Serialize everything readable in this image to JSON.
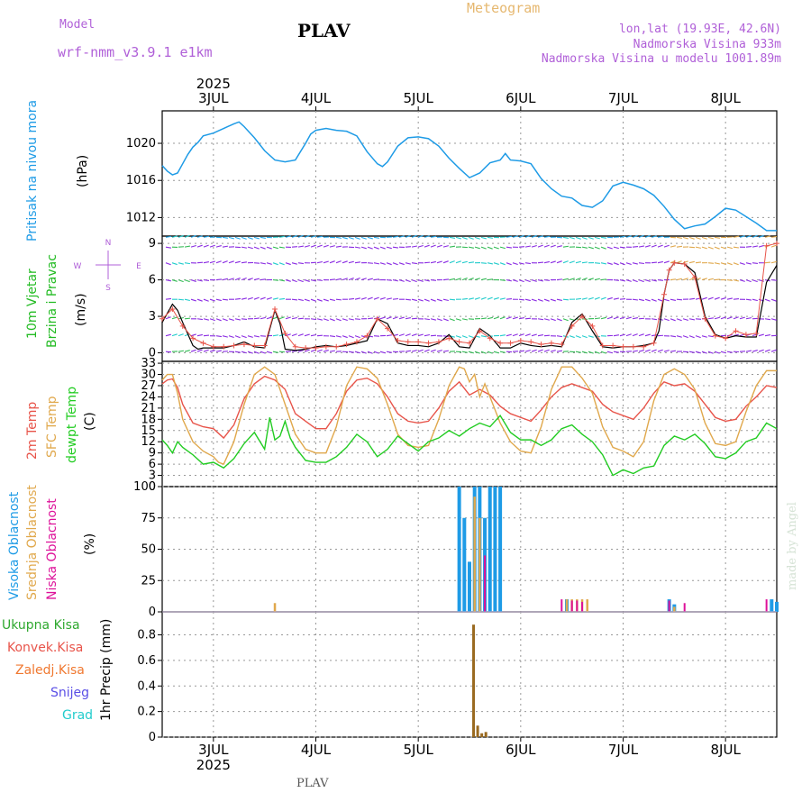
{
  "header": {
    "model_label": "Model",
    "model_name": "wrf-nmm_v3.9.1 e1km",
    "station": "PLAV",
    "meteogram": "Meteogram",
    "coords": "lon,lat (19.93E, 42.6N)",
    "altitude": "Nadmorska Visina 933m",
    "model_altitude": "Nadmorska Visina u modelu 1001.89m",
    "footer_station": "PLAV",
    "credit": "made by Angel"
  },
  "colors": {
    "pressure": "#1e9be6",
    "wind_label": "#22bb22",
    "temp2m": "#e8544a",
    "sfc": "#e0a84c",
    "dewpt": "#22cc22",
    "high_cloud": "#1e9be6",
    "mid_cloud": "#e0a84c",
    "low_cloud": "#dd1199",
    "precip_total": "#2ea82e",
    "convective": "#e8544a",
    "freezing": "#f07830",
    "snow": "#5a4fe6",
    "hail": "#22cccc",
    "precip_bar": "#9a6a20",
    "gust": "#000000",
    "wind_cross": "#e8544a",
    "header_purple": "#b060d8",
    "meteogram_title": "#e6b870"
  },
  "x_axis": {
    "year": "2025",
    "dates": [
      "3JUL",
      "4JUL",
      "5JUL",
      "6JUL",
      "7JUL",
      "8JUL"
    ],
    "range_days": [
      2.5,
      8.5
    ]
  },
  "chart_data": [
    {
      "type": "line",
      "panel": "pressure",
      "ylabel_main": "Pritisak na nivou mora",
      "ylabel_unit": "(hPa)",
      "ylim": [
        1010,
        1023.5
      ],
      "yticks": [
        1012,
        1016,
        1020
      ],
      "series": [
        {
          "x": [
            2.5,
            2.55,
            2.6,
            2.65,
            2.7,
            2.75,
            2.8,
            2.85,
            2.9,
            3.0,
            3.1,
            3.2,
            3.25,
            3.3,
            3.4,
            3.5,
            3.6,
            3.7,
            3.8,
            3.9,
            3.95,
            4.0,
            4.1,
            4.2,
            4.3,
            4.4,
            4.5,
            4.6,
            4.65,
            4.7,
            4.8,
            4.9,
            5.0,
            5.1,
            5.2,
            5.3,
            5.4,
            5.5,
            5.6,
            5.7,
            5.8,
            5.85,
            5.9,
            6.0,
            6.1,
            6.2,
            6.3,
            6.4,
            6.5,
            6.6,
            6.7,
            6.8,
            6.9,
            7.0,
            7.1,
            7.2,
            7.3,
            7.4,
            7.5,
            7.6,
            7.7,
            7.8,
            7.9,
            8.0,
            8.1,
            8.2,
            8.3,
            8.4,
            8.5
          ],
          "y": [
            1017.6,
            1017,
            1016.6,
            1016.8,
            1017.8,
            1018.8,
            1019.6,
            1020.1,
            1020.8,
            1021.1,
            1021.6,
            1022.1,
            1022.3,
            1021.8,
            1020.6,
            1019.2,
            1018.2,
            1018,
            1018.2,
            1020,
            1021,
            1021.4,
            1021.6,
            1021.4,
            1021.3,
            1020.8,
            1019.1,
            1017.8,
            1017.5,
            1018,
            1019.7,
            1020.6,
            1020.7,
            1020.5,
            1019.7,
            1018.4,
            1017.3,
            1016.3,
            1016.8,
            1017.9,
            1018.2,
            1018.9,
            1018.2,
            1018.1,
            1017.8,
            1016.2,
            1015.1,
            1014.3,
            1014.1,
            1013.3,
            1013.1,
            1013.8,
            1015.4,
            1015.8,
            1015.5,
            1015.1,
            1014.4,
            1013.2,
            1011.8,
            1010.8,
            1011.1,
            1011.3,
            1012.1,
            1013,
            1012.8,
            1012.1,
            1011.4,
            1010.6,
            1010.6
          ]
        }
      ]
    },
    {
      "type": "line",
      "panel": "wind",
      "ylabel_main": "10m Vjetar",
      "ylabel_sub": "Brzina i Pravac",
      "ylabel_unit": "(m/s)",
      "compass": {
        "n": "N",
        "s": "S",
        "e": "E",
        "w": "W"
      },
      "ylim": [
        -0.7,
        9.6
      ],
      "yticks": [
        0,
        3,
        6,
        9
      ],
      "barb_rows": [
        0.1,
        1.4,
        2.8,
        4.4,
        6.0,
        7.4,
        8.7,
        9.5
      ],
      "series": [
        {
          "key": "gust",
          "x": [
            2.5,
            2.6,
            2.65,
            2.7,
            2.8,
            2.85,
            2.9,
            3.0,
            3.1,
            3.2,
            3.3,
            3.4,
            3.5,
            3.6,
            3.65,
            3.7,
            3.8,
            3.9,
            4.0,
            4.1,
            4.2,
            4.3,
            4.4,
            4.5,
            4.6,
            4.7,
            4.8,
            4.9,
            5.0,
            5.1,
            5.2,
            5.3,
            5.4,
            5.5,
            5.6,
            5.7,
            5.8,
            5.9,
            6.0,
            6.1,
            6.2,
            6.3,
            6.4,
            6.5,
            6.6,
            6.7,
            6.8,
            6.9,
            7.0,
            7.1,
            7.2,
            7.3,
            7.35,
            7.4,
            7.45,
            7.5,
            7.6,
            7.7,
            7.8,
            7.9,
            8.0,
            8.1,
            8.2,
            8.3,
            8.4,
            8.5
          ],
          "y": [
            2.5,
            4.0,
            3.5,
            2.5,
            0.6,
            0.3,
            0.4,
            0.4,
            0.4,
            0.6,
            0.9,
            0.5,
            0.4,
            3.5,
            2.4,
            0.3,
            0.2,
            0.3,
            0.5,
            0.6,
            0.5,
            0.6,
            0.8,
            1.0,
            2.8,
            2.4,
            0.8,
            0.6,
            0.6,
            0.5,
            0.8,
            1.5,
            0.5,
            0.4,
            2.0,
            1.4,
            0.4,
            0.4,
            0.8,
            0.6,
            0.5,
            0.6,
            0.5,
            2.5,
            3.2,
            1.8,
            0.5,
            0.4,
            0.5,
            0.5,
            0.6,
            0.8,
            1.8,
            4.8,
            6.8,
            7.4,
            7.3,
            6.6,
            3.0,
            1.5,
            1.2,
            1.4,
            1.3,
            1.3,
            5.8,
            7.2
          ]
        },
        {
          "key": "speed",
          "x": [
            2.5,
            2.6,
            2.7,
            2.8,
            2.9,
            3.0,
            3.1,
            3.2,
            3.3,
            3.4,
            3.5,
            3.6,
            3.7,
            3.8,
            3.9,
            4.0,
            4.1,
            4.2,
            4.3,
            4.4,
            4.5,
            4.6,
            4.7,
            4.8,
            4.9,
            5.0,
            5.1,
            5.2,
            5.3,
            5.4,
            5.5,
            5.6,
            5.7,
            5.8,
            5.9,
            6.0,
            6.1,
            6.2,
            6.3,
            6.4,
            6.5,
            6.6,
            6.7,
            6.8,
            6.9,
            7.0,
            7.1,
            7.2,
            7.3,
            7.4,
            7.45,
            7.5,
            7.6,
            7.7,
            7.8,
            7.9,
            8.0,
            8.1,
            8.2,
            8.3,
            8.4,
            8.5
          ],
          "y": [
            2.8,
            3.6,
            2.2,
            1.2,
            0.8,
            0.5,
            0.5,
            0.6,
            0.7,
            0.6,
            0.6,
            3.6,
            1.6,
            0.5,
            0.4,
            0.4,
            0.5,
            0.5,
            0.7,
            0.9,
            1.4,
            2.8,
            2.0,
            1.0,
            0.9,
            0.9,
            0.8,
            0.9,
            1.2,
            0.9,
            0.8,
            1.8,
            1.2,
            0.8,
            0.8,
            1.0,
            0.9,
            0.7,
            0.8,
            0.7,
            2.2,
            3.0,
            2.2,
            0.6,
            0.6,
            0.5,
            0.5,
            0.5,
            0.8,
            4.8,
            6.8,
            7.4,
            7.3,
            6.2,
            2.8,
            1.4,
            1.2,
            1.8,
            1.5,
            1.6,
            8.8,
            9.0
          ]
        }
      ]
    },
    {
      "type": "line",
      "panel": "temperature",
      "ylabel_lines": [
        "2m Temp",
        "SFC Temp",
        "dewpt Temp"
      ],
      "ylabel_unit": "(C)",
      "ylim": [
        0,
        33.5
      ],
      "yticks": [
        0,
        3,
        6,
        9,
        12,
        15,
        18,
        21,
        24,
        27,
        30,
        33
      ],
      "series": [
        {
          "key": "temp2m",
          "x": [
            2.5,
            2.55,
            2.6,
            2.65,
            2.7,
            2.8,
            2.9,
            3.0,
            3.1,
            3.2,
            3.3,
            3.4,
            3.5,
            3.6,
            3.7,
            3.8,
            3.9,
            4.0,
            4.1,
            4.2,
            4.3,
            4.4,
            4.5,
            4.6,
            4.7,
            4.8,
            4.9,
            5.0,
            5.1,
            5.2,
            5.3,
            5.4,
            5.5,
            5.6,
            5.7,
            5.8,
            5.9,
            6.0,
            6.1,
            6.2,
            6.3,
            6.4,
            6.5,
            6.6,
            6.7,
            6.8,
            6.9,
            7.0,
            7.1,
            7.2,
            7.3,
            7.4,
            7.5,
            7.6,
            7.7,
            7.8,
            7.9,
            8.0,
            8.1,
            8.2,
            8.3,
            8.4,
            8.5
          ],
          "y": [
            27.5,
            28.5,
            28.8,
            26.5,
            22.0,
            17.0,
            16.0,
            15.5,
            13.0,
            16.5,
            23.5,
            27.5,
            29.5,
            28.5,
            26.0,
            19.5,
            17.5,
            15.5,
            15.5,
            19.5,
            25.5,
            28.5,
            29.0,
            27.5,
            24.0,
            19.5,
            17.5,
            17.0,
            17.5,
            21.0,
            25.5,
            28.0,
            24.5,
            26.0,
            24.5,
            21.5,
            19.5,
            18.5,
            17.5,
            20.5,
            24.0,
            26.5,
            27.5,
            26.5,
            25.5,
            22.0,
            20.0,
            19.0,
            18.0,
            21.0,
            25.0,
            28.0,
            27.0,
            27.5,
            25.5,
            22.0,
            18.5,
            17.5,
            18.0,
            21.5,
            24.0,
            27.0,
            26.5
          ]
        },
        {
          "key": "sfc",
          "x": [
            2.5,
            2.55,
            2.6,
            2.65,
            2.7,
            2.8,
            2.9,
            3.0,
            3.05,
            3.1,
            3.2,
            3.3,
            3.4,
            3.5,
            3.6,
            3.7,
            3.8,
            3.9,
            4.0,
            4.1,
            4.2,
            4.3,
            4.4,
            4.5,
            4.6,
            4.7,
            4.8,
            4.9,
            5.0,
            5.1,
            5.2,
            5.3,
            5.4,
            5.45,
            5.5,
            5.55,
            5.6,
            5.65,
            5.7,
            5.8,
            5.9,
            6.0,
            6.1,
            6.2,
            6.3,
            6.4,
            6.5,
            6.6,
            6.7,
            6.8,
            6.9,
            7.0,
            7.1,
            7.2,
            7.3,
            7.4,
            7.5,
            7.6,
            7.7,
            7.8,
            7.9,
            8.0,
            8.1,
            8.2,
            8.3,
            8.4,
            8.5
          ],
          "y": [
            28.5,
            30.0,
            30.0,
            25.0,
            18.0,
            12.0,
            9.5,
            8.0,
            6.5,
            6.0,
            12.0,
            22.0,
            30.0,
            32.0,
            30.0,
            22.0,
            14.0,
            10.0,
            9.0,
            9.0,
            16.0,
            27.0,
            32.0,
            31.5,
            29.0,
            22.0,
            14.0,
            11.0,
            10.5,
            11.0,
            18.0,
            27.0,
            32.0,
            31.5,
            28.0,
            30.0,
            24.0,
            27.5,
            24.0,
            17.0,
            12.0,
            9.5,
            9.0,
            16.0,
            26.0,
            32.0,
            32.0,
            29.0,
            25.0,
            16.0,
            10.5,
            9.5,
            8.0,
            12.0,
            23.0,
            30.0,
            31.5,
            30.0,
            26.0,
            17.0,
            11.5,
            11.0,
            12.0,
            20.0,
            27.0,
            31.0,
            31.0
          ]
        },
        {
          "key": "dewpt",
          "x": [
            2.5,
            2.55,
            2.6,
            2.65,
            2.7,
            2.8,
            2.9,
            3.0,
            3.1,
            3.2,
            3.3,
            3.4,
            3.5,
            3.55,
            3.6,
            3.65,
            3.7,
            3.75,
            3.8,
            3.9,
            4.0,
            4.1,
            4.2,
            4.3,
            4.4,
            4.5,
            4.6,
            4.7,
            4.8,
            4.9,
            5.0,
            5.1,
            5.2,
            5.3,
            5.4,
            5.5,
            5.6,
            5.7,
            5.8,
            5.9,
            6.0,
            6.1,
            6.2,
            6.3,
            6.4,
            6.5,
            6.6,
            6.7,
            6.8,
            6.9,
            7.0,
            7.1,
            7.2,
            7.3,
            7.4,
            7.5,
            7.6,
            7.7,
            7.8,
            7.9,
            8.0,
            8.1,
            8.2,
            8.3,
            8.4,
            8.5
          ],
          "y": [
            12.5,
            11.0,
            9.0,
            12.0,
            10.5,
            8.5,
            6.0,
            6.5,
            5.0,
            7.5,
            11.5,
            14.5,
            10.0,
            18.5,
            12.5,
            13.5,
            17.5,
            13.0,
            10.5,
            7.0,
            6.5,
            6.5,
            8.0,
            10.5,
            14.0,
            12.0,
            8.0,
            10.0,
            13.5,
            11.5,
            9.5,
            12.0,
            13.0,
            15.0,
            13.5,
            15.5,
            17.0,
            16.0,
            19.0,
            14.5,
            12.5,
            12.5,
            11.0,
            12.5,
            15.5,
            16.5,
            14.0,
            12.0,
            8.5,
            3.0,
            4.5,
            3.5,
            5.0,
            5.5,
            11.0,
            13.5,
            12.5,
            14.0,
            11.5,
            8.0,
            7.5,
            9.0,
            12.0,
            13.0,
            17.0,
            15.5
          ]
        }
      ]
    },
    {
      "type": "bar",
      "panel": "cloud",
      "ylabel_lines": [
        "Visoka Oblacnost",
        "Srednja Oblacnost",
        "Niska Oblacnost"
      ],
      "ylabel_unit": "(%)",
      "ylim": [
        0,
        100
      ],
      "yticks": [
        0,
        25,
        50,
        75,
        100
      ],
      "high_x": [
        5.4,
        5.45,
        5.5,
        5.55,
        5.6,
        5.65,
        5.7,
        5.75,
        5.8,
        6.45,
        7.45,
        7.5,
        8.45,
        8.5
      ],
      "high_y": [
        100,
        75,
        40,
        100,
        100,
        75,
        100,
        100,
        100,
        10,
        10,
        6,
        10,
        8
      ],
      "mid_x": [
        3.6,
        5.55,
        5.6,
        6.45,
        6.5,
        6.55,
        6.6,
        6.65,
        7.5
      ],
      "mid_y": [
        7,
        92,
        75,
        10,
        10,
        10,
        10,
        10,
        4
      ],
      "low_x": [
        5.65,
        6.4,
        6.5,
        6.55,
        6.6,
        7.45,
        7.6,
        8.4
      ],
      "low_y": [
        45,
        10,
        9,
        9,
        8,
        9,
        7,
        10
      ]
    },
    {
      "type": "bar",
      "panel": "precip",
      "ylabel_unit": "1hr Precip (mm)",
      "legend": [
        "Ukupna Kisa",
        "Konvek.Kisa",
        "Zaledj.Kisa",
        "Snijeg",
        "Grad"
      ],
      "ylim": [
        0,
        0.98
      ],
      "yticks": [
        0,
        0.2,
        0.4,
        0.6,
        0.8
      ],
      "x": [
        5.54,
        5.58,
        5.62,
        5.66
      ],
      "values": [
        0.88,
        0.09,
        0.03,
        0.04
      ]
    }
  ]
}
